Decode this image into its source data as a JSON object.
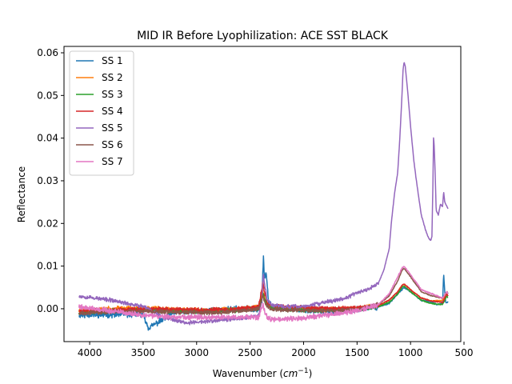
{
  "chart_data": {
    "type": "line",
    "title": "MID IR Before Lyophilization: ACE SST BLACK",
    "xlabel_main": "Wavenumber (",
    "xlabel_unit_base": "cm",
    "xlabel_unit_exp": "−1",
    "xlabel_close": ")",
    "ylabel": "Reflectance",
    "xlim": [
      4240,
      530
    ],
    "ylim": [
      -0.0077,
      0.0615
    ],
    "x_ticks": [
      4000,
      3500,
      3000,
      2500,
      2000,
      1500,
      1000,
      500
    ],
    "x_tick_labels": [
      "4000",
      "3500",
      "3000",
      "2500",
      "2000",
      "1500",
      "1000",
      "500"
    ],
    "y_ticks": [
      0.0,
      0.01,
      0.02,
      0.03,
      0.04,
      0.05,
      0.06
    ],
    "y_tick_labels": [
      "0.00",
      "0.01",
      "0.02",
      "0.03",
      "0.04",
      "0.05",
      "0.06"
    ],
    "grid": false,
    "legend_position": "top-left",
    "series": [
      {
        "name": "SS 1",
        "color": "#1f77b4",
        "noise": 0.001,
        "seed": 11,
        "x": [
          4100,
          3800,
          3500,
          3450,
          3200,
          2900,
          2600,
          2420,
          2390,
          2375,
          2365,
          2350,
          2330,
          2300,
          2200,
          2000,
          1800,
          1500,
          1300,
          1200,
          1120,
          1080,
          1060,
          1000,
          900,
          800,
          750,
          700,
          690,
          680,
          670,
          650
        ],
        "y": [
          -0.0015,
          -0.0014,
          -0.0013,
          -0.0045,
          -0.0008,
          -0.0005,
          0.0,
          0.0,
          0.002,
          0.0122,
          0.007,
          0.0085,
          0.002,
          0.0005,
          0.0,
          -0.0003,
          -0.0005,
          -0.0002,
          0.0005,
          0.0012,
          0.0035,
          0.0045,
          0.005,
          0.004,
          0.002,
          0.0015,
          0.001,
          0.0012,
          0.0083,
          0.004,
          0.0015,
          0.0015
        ]
      },
      {
        "name": "SS 2",
        "color": "#ff7f0e",
        "noise": 0.0008,
        "seed": 23,
        "x": [
          4100,
          3800,
          3500,
          3200,
          2900,
          2600,
          2420,
          2380,
          2360,
          2340,
          2300,
          2200,
          2000,
          1800,
          1500,
          1300,
          1200,
          1120,
          1080,
          1060,
          1000,
          900,
          800,
          700,
          660,
          650
        ],
        "y": [
          -0.0005,
          0.0,
          0.0003,
          -0.0002,
          -0.0005,
          0.0,
          0.0005,
          0.004,
          0.0025,
          0.001,
          0.0005,
          0.0002,
          0.0,
          -0.0002,
          0.0,
          0.0008,
          0.002,
          0.004,
          0.0055,
          0.0058,
          0.0045,
          0.0025,
          0.0018,
          0.002,
          0.004,
          0.0035
        ]
      },
      {
        "name": "SS 3",
        "color": "#2ca02c",
        "noise": 0.0008,
        "seed": 37,
        "x": [
          4100,
          3800,
          3500,
          3200,
          2900,
          2600,
          2420,
          2380,
          2360,
          2340,
          2300,
          2200,
          2000,
          1800,
          1500,
          1300,
          1200,
          1120,
          1080,
          1060,
          1000,
          900,
          800,
          700,
          660,
          650
        ],
        "y": [
          -0.0008,
          -0.0005,
          -0.0003,
          -0.0005,
          -0.0006,
          -0.0003,
          0.0,
          0.0035,
          0.002,
          0.0008,
          0.0003,
          0.0,
          -0.0002,
          -0.0004,
          -0.0002,
          0.0005,
          0.0015,
          0.0035,
          0.005,
          0.0053,
          0.004,
          0.002,
          0.0012,
          0.001,
          0.003,
          0.0025
        ]
      },
      {
        "name": "SS 4",
        "color": "#d62728",
        "noise": 0.0007,
        "seed": 41,
        "x": [
          4100,
          3800,
          3500,
          3200,
          2900,
          2600,
          2420,
          2380,
          2360,
          2340,
          2300,
          2200,
          2000,
          1800,
          1500,
          1300,
          1200,
          1120,
          1080,
          1060,
          1000,
          900,
          800,
          700,
          660,
          650
        ],
        "y": [
          -0.0005,
          -0.0003,
          0.0,
          -0.0002,
          -0.0003,
          0.0,
          0.0005,
          0.006,
          0.0035,
          0.0015,
          0.0008,
          0.0005,
          0.0003,
          0.0,
          0.0002,
          0.0008,
          0.002,
          0.004,
          0.0055,
          0.0058,
          0.0045,
          0.0025,
          0.0018,
          0.0015,
          0.0035,
          0.003
        ]
      },
      {
        "name": "SS 5",
        "color": "#9467bd",
        "noise": 0.0007,
        "seed": 53,
        "x": [
          4100,
          3800,
          3500,
          3300,
          3100,
          2900,
          2700,
          2500,
          2420,
          2390,
          2375,
          2360,
          2340,
          2300,
          2200,
          2000,
          1800,
          1600,
          1500,
          1400,
          1300,
          1250,
          1200,
          1180,
          1150,
          1120,
          1100,
          1080,
          1070,
          1060,
          1050,
          1030,
          1000,
          970,
          940,
          900,
          860,
          830,
          810,
          800,
          790,
          785,
          780,
          770,
          760,
          740,
          720,
          700,
          690,
          680,
          670,
          660,
          650
        ],
        "y": [
          0.003,
          0.002,
          0.0005,
          -0.002,
          -0.0033,
          -0.003,
          -0.0025,
          -0.002,
          -0.0015,
          0.002,
          0.008,
          0.005,
          0.002,
          0.001,
          0.0005,
          0.0005,
          0.0015,
          0.0025,
          0.0038,
          0.0045,
          0.006,
          0.009,
          0.014,
          0.02,
          0.027,
          0.032,
          0.04,
          0.05,
          0.056,
          0.0578,
          0.057,
          0.052,
          0.043,
          0.035,
          0.029,
          0.022,
          0.0185,
          0.0165,
          0.016,
          0.017,
          0.03,
          0.04,
          0.039,
          0.032,
          0.023,
          0.022,
          0.0245,
          0.024,
          0.0275,
          0.025,
          0.0245,
          0.024,
          0.0235
        ]
      },
      {
        "name": "SS 6",
        "color": "#8c564b",
        "noise": 0.0007,
        "seed": 67,
        "x": [
          4100,
          3800,
          3500,
          3200,
          2900,
          2600,
          2420,
          2380,
          2360,
          2340,
          2300,
          2200,
          2000,
          1800,
          1500,
          1300,
          1200,
          1120,
          1080,
          1060,
          1000,
          900,
          800,
          700,
          660,
          650
        ],
        "y": [
          -0.001,
          -0.0008,
          -0.0005,
          -0.0008,
          -0.001,
          -0.0005,
          0.0,
          0.003,
          0.0015,
          0.0005,
          0.0,
          -0.0002,
          -0.0004,
          -0.0005,
          -0.0002,
          0.001,
          0.003,
          0.0065,
          0.009,
          0.0095,
          0.0075,
          0.004,
          0.003,
          0.0025,
          0.004,
          0.0035
        ]
      },
      {
        "name": "SS 7",
        "color": "#e377c2",
        "noise": 0.0009,
        "seed": 79,
        "x": [
          4100,
          3800,
          3500,
          3200,
          2900,
          2600,
          2420,
          2380,
          2360,
          2340,
          2300,
          2200,
          2000,
          1800,
          1500,
          1300,
          1200,
          1120,
          1080,
          1060,
          1000,
          900,
          800,
          700,
          660,
          650
        ],
        "y": [
          0.0005,
          -0.0005,
          -0.0015,
          -0.002,
          -0.002,
          -0.002,
          -0.002,
          0.001,
          -0.001,
          -0.002,
          -0.0025,
          -0.0025,
          -0.0022,
          -0.0015,
          -0.0005,
          0.001,
          0.0035,
          0.0075,
          0.0095,
          0.01,
          0.008,
          0.0045,
          0.0035,
          0.0025,
          0.004,
          0.0035
        ]
      }
    ]
  }
}
